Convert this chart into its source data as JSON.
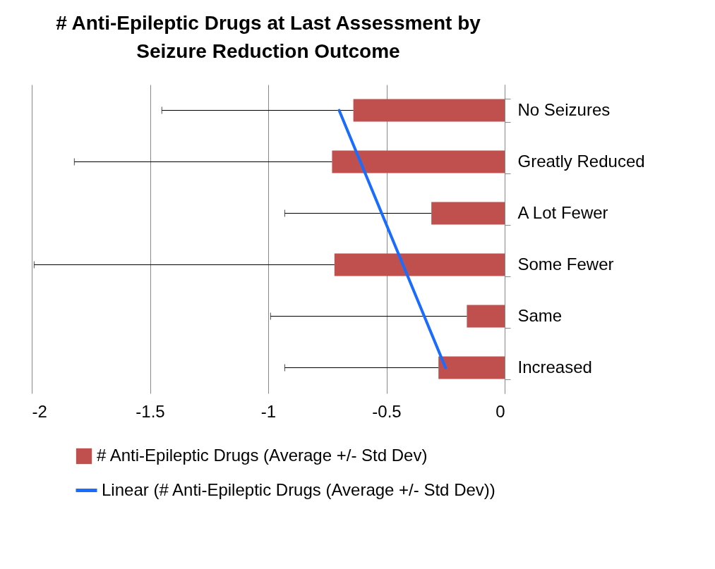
{
  "chart_data": {
    "type": "bar",
    "orientation": "horizontal",
    "title": "# Anti-Epileptic Drugs at Last Assessment by Seizure Reduction Outcome",
    "categories": [
      "No Seizures",
      "Greatly Reduced",
      "A Lot Fewer",
      "Some Fewer",
      "Same",
      "Increased"
    ],
    "series": [
      {
        "name": "# Anti-Epileptic Drugs (Average +/- Std Dev)",
        "color": "#c0504d",
        "values": [
          -0.64,
          -0.73,
          -0.31,
          -0.72,
          -0.16,
          -0.28
        ],
        "errors": [
          [
            -1.45,
            -0.64
          ],
          [
            -1.82,
            -0.73
          ],
          [
            -0.93,
            -0.31
          ],
          [
            -1.99,
            -0.72
          ],
          [
            -0.99,
            -0.16
          ],
          [
            -0.93,
            -0.28
          ]
        ]
      },
      {
        "name": "Linear (# Anti-Epileptic Drugs (Average +/- Std Dev))",
        "type": "line",
        "color": "#1a6cff",
        "x": [
          "No Seizures",
          "Increased"
        ],
        "values": [
          -0.7,
          -0.25
        ]
      }
    ],
    "xlim": [
      -2,
      0
    ],
    "xticks": [
      -2,
      -1.5,
      -1,
      -0.5,
      0
    ],
    "grid": "x",
    "legend": "bottom"
  }
}
